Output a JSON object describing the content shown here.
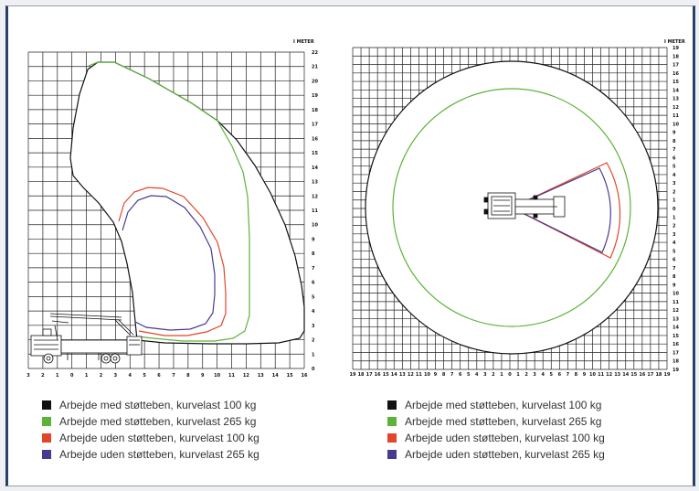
{
  "colors": {
    "black": "#111111",
    "green": "#5db339",
    "red": "#e2452a",
    "purple": "#473b8f",
    "grid": "#222222",
    "frame_accent": "#2b3f6a"
  },
  "side_view": {
    "unit_label": "I METER",
    "y_ticks": [
      "0",
      "1",
      "2",
      "3",
      "4",
      "5",
      "6",
      "7",
      "8",
      "9",
      "10",
      "11",
      "12",
      "13",
      "14",
      "15",
      "16",
      "17",
      "18",
      "19",
      "20",
      "21",
      "22"
    ],
    "x_ticks": [
      "3",
      "2",
      "1",
      "0",
      "1",
      "2",
      "3",
      "4",
      "5",
      "6",
      "7",
      "8",
      "9",
      "10",
      "11",
      "12",
      "13",
      "14",
      "15",
      "16"
    ]
  },
  "top_view": {
    "unit_label": "I METER",
    "y_ticks": [
      "19",
      "18",
      "17",
      "16",
      "15",
      "14",
      "13",
      "12",
      "11",
      "10",
      "9",
      "8",
      "7",
      "6",
      "5",
      "4",
      "3",
      "2",
      "1",
      "0",
      "1",
      "2",
      "3",
      "4",
      "5",
      "6",
      "7",
      "8",
      "9",
      "10",
      "11",
      "12",
      "13",
      "14",
      "15",
      "16",
      "17",
      "18",
      "19"
    ],
    "x_ticks": [
      "19",
      "18",
      "17",
      "16",
      "15",
      "14",
      "13",
      "12",
      "11",
      "10",
      "9",
      "8",
      "7",
      "6",
      "5",
      "4",
      "3",
      "2",
      "1",
      "0",
      "1",
      "2",
      "3",
      "4",
      "5",
      "6",
      "7",
      "8",
      "9",
      "10",
      "11",
      "12",
      "13",
      "14",
      "15",
      "16",
      "17",
      "18",
      "19"
    ]
  },
  "legend_left": [
    {
      "label": "Arbejde med støtteben, kurvelast 100 kg",
      "color": "#111111",
      "icon": "square"
    },
    {
      "label": "Arbejde med støtteben, kurvelast 265 kg",
      "color": "#5db339",
      "icon": "square"
    },
    {
      "label": "Arbejde uden støtteben, kurvelast 100 kg",
      "color": "#e2452a",
      "icon": "square"
    },
    {
      "label": "Arbejde uden støtteben, kurvelast 265 kg",
      "color": "#473b8f",
      "icon": "square"
    }
  ],
  "legend_right": [
    {
      "label": "Arbejde med støtteben, kurvelast 100 kg",
      "color": "#111111",
      "icon": "square"
    },
    {
      "label": "Arbejde med støtteben, kurvelast 265 kg",
      "color": "#5db339",
      "icon": "square"
    },
    {
      "label": "Arbejde uden støtteben, kurvelast 100 kg",
      "color": "#e2452a",
      "icon": "square"
    },
    {
      "label": "Arbejde uden støtteben, kurvelast 265 kg",
      "color": "#473b8f",
      "icon": "square"
    }
  ]
}
